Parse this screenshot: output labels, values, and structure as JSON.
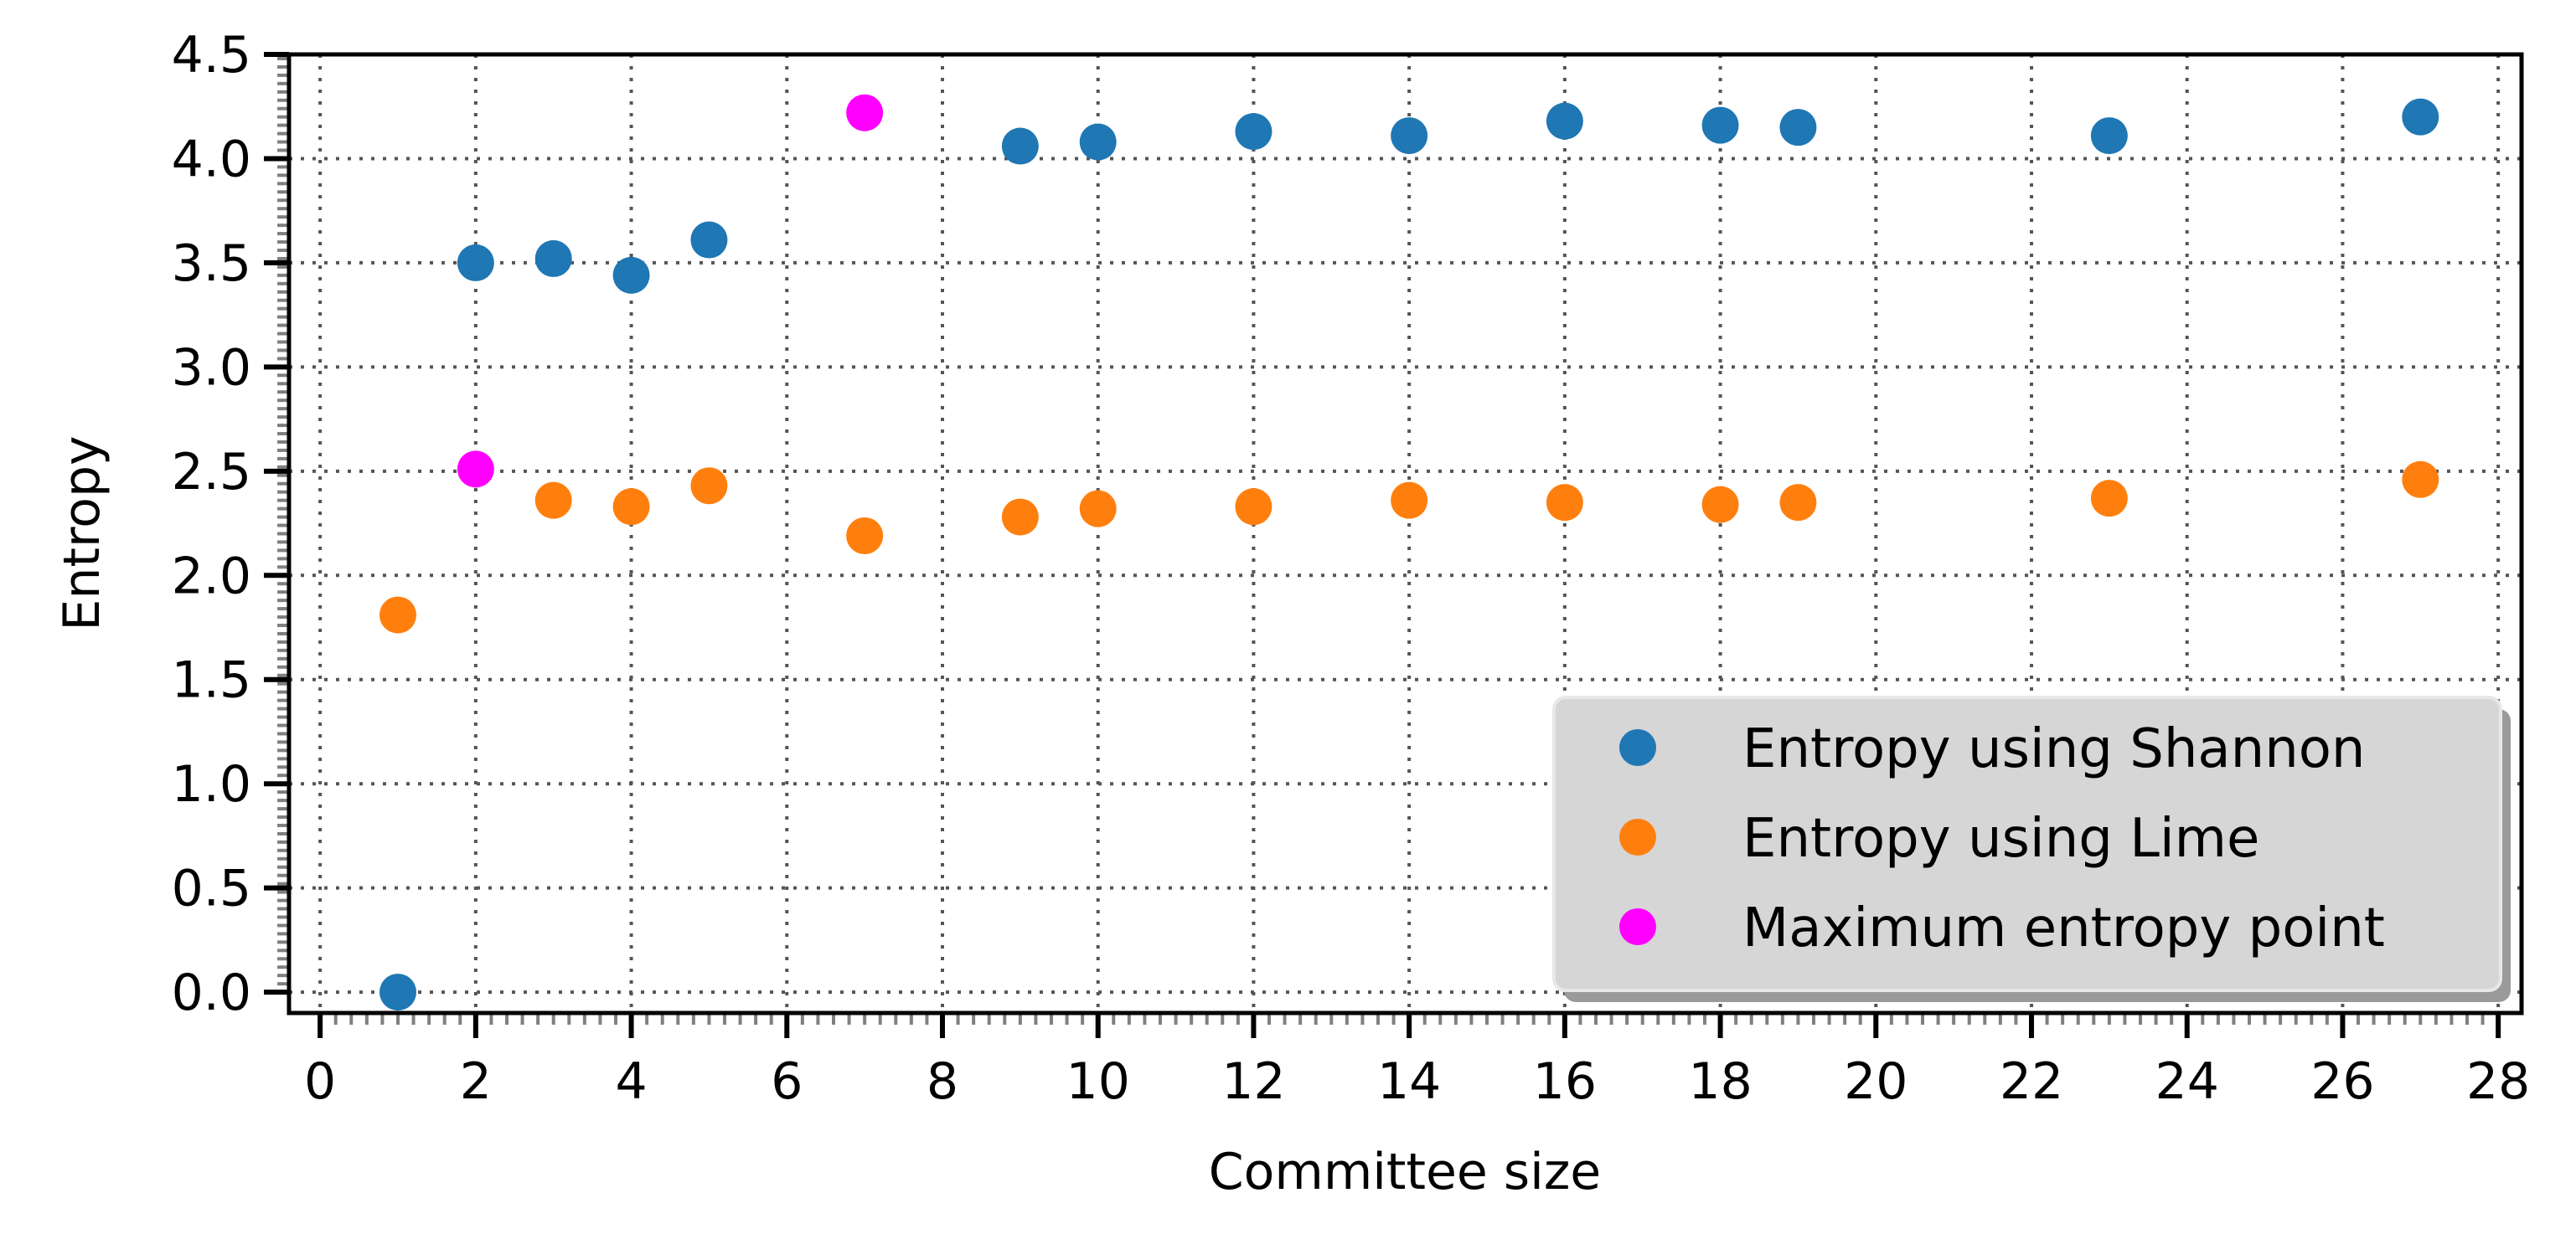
{
  "chart_data": {
    "type": "scatter",
    "title": "",
    "xlabel": "Committee size",
    "ylabel": "Entropy",
    "xlim": [
      -0.4,
      28.3
    ],
    "ylim": [
      -0.1,
      4.5
    ],
    "xticks": [
      0,
      2,
      4,
      6,
      8,
      10,
      12,
      14,
      16,
      18,
      20,
      22,
      24,
      26,
      28
    ],
    "yticks": [
      0.0,
      0.5,
      1.0,
      1.5,
      2.0,
      2.5,
      3.0,
      3.5,
      4.0,
      4.5
    ],
    "xtick_labels": [
      "0",
      "2",
      "4",
      "6",
      "8",
      "10",
      "12",
      "14",
      "16",
      "18",
      "20",
      "22",
      "24",
      "26",
      "28"
    ],
    "ytick_labels": [
      "0.0",
      "0.5",
      "1.0",
      "1.5",
      "2.0",
      "2.5",
      "3.0",
      "3.5",
      "4.0",
      "4.5"
    ],
    "grid": true,
    "legend_position": "bottom-right",
    "series": [
      {
        "name": "Entropy using Shannon",
        "color": "#1f77b4",
        "x": [
          1,
          2,
          3,
          4,
          5,
          9,
          10,
          12,
          14,
          16,
          18,
          19,
          23,
          27
        ],
        "y": [
          0.0,
          3.5,
          3.52,
          3.44,
          3.61,
          4.06,
          4.08,
          4.13,
          4.11,
          4.18,
          4.16,
          4.15,
          4.11,
          4.2
        ]
      },
      {
        "name": "Entropy using Lime",
        "color": "#ff7f0e",
        "x": [
          1,
          3,
          4,
          5,
          7,
          9,
          10,
          12,
          14,
          16,
          18,
          19,
          23,
          27
        ],
        "y": [
          1.81,
          2.36,
          2.33,
          2.43,
          2.19,
          2.28,
          2.32,
          2.33,
          2.36,
          2.35,
          2.34,
          2.35,
          2.37,
          2.46
        ]
      },
      {
        "name": "Maximum entropy point",
        "color": "#ff00ff",
        "x": [
          2,
          7
        ],
        "y": [
          2.51,
          4.22
        ]
      }
    ]
  }
}
